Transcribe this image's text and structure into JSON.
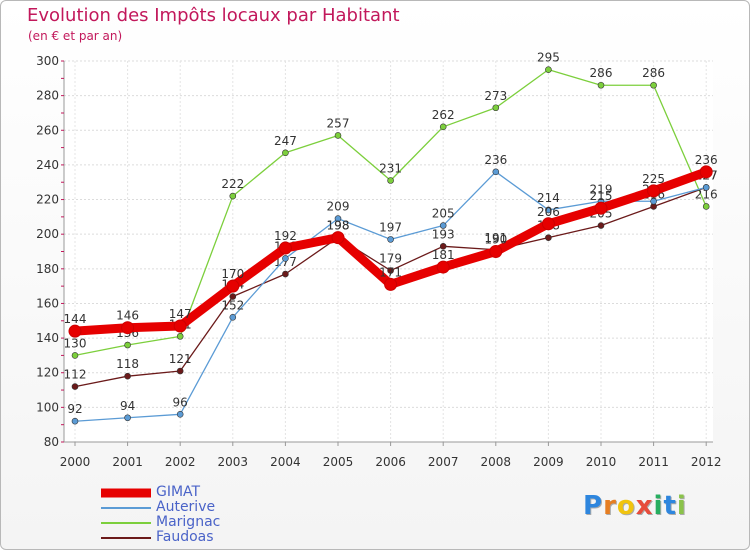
{
  "chart_data": {
    "type": "line",
    "title": "Evolution des Impôts locaux par Habitant",
    "subtitle": "(en € et par an)",
    "xlabel": "",
    "ylabel": "",
    "ylim": [
      80,
      300
    ],
    "yticks": [
      80,
      100,
      120,
      140,
      160,
      180,
      200,
      220,
      240,
      260,
      280,
      300
    ],
    "grid": true,
    "legend_position": "bottom-left",
    "categories": [
      "2000",
      "2001",
      "2002",
      "2003",
      "2004",
      "2005",
      "2006",
      "2007",
      "2008",
      "2009",
      "2010",
      "2011",
      "2012"
    ],
    "series": [
      {
        "name": "Faudoas",
        "color": "#6b1a1a",
        "values": [
          112,
          118,
          121,
          164,
          177,
          198,
          179,
          193,
          191,
          198,
          205,
          216,
          227
        ]
      },
      {
        "name": "Marignac",
        "color": "#7ccf3c",
        "values": [
          130,
          136,
          141,
          222,
          247,
          257,
          231,
          262,
          273,
          295,
          286,
          286,
          216
        ]
      },
      {
        "name": "Auterive",
        "color": "#5b9bd5",
        "values": [
          92,
          94,
          96,
          152,
          186,
          209,
          197,
          205,
          236,
          214,
          219,
          219,
          227
        ]
      },
      {
        "name": "GIMAT",
        "color": "#e60000",
        "values": [
          144,
          146,
          147,
          170,
          192,
          198,
          171,
          181,
          190,
          206,
          215,
          225,
          236
        ]
      }
    ]
  },
  "legend": {
    "items": [
      {
        "name": "GIMAT",
        "color": "#e60000"
      },
      {
        "name": "Auterive",
        "color": "#5b9bd5"
      },
      {
        "name": "Marignac",
        "color": "#7ccf3c"
      },
      {
        "name": "Faudoas",
        "color": "#6b1a1a"
      }
    ]
  },
  "logo": {
    "text": "Proxiti",
    "letters": [
      {
        "ch": "P",
        "color": "#2e86de"
      },
      {
        "ch": "r",
        "color": "#e67e22"
      },
      {
        "ch": "o",
        "color": "#f1c40f"
      },
      {
        "ch": "x",
        "color": "#e74c3c"
      },
      {
        "ch": "i",
        "color": "#27ae60"
      },
      {
        "ch": "t",
        "color": "#2e86de"
      },
      {
        "ch": "i",
        "color": "#8bc34a"
      }
    ]
  }
}
